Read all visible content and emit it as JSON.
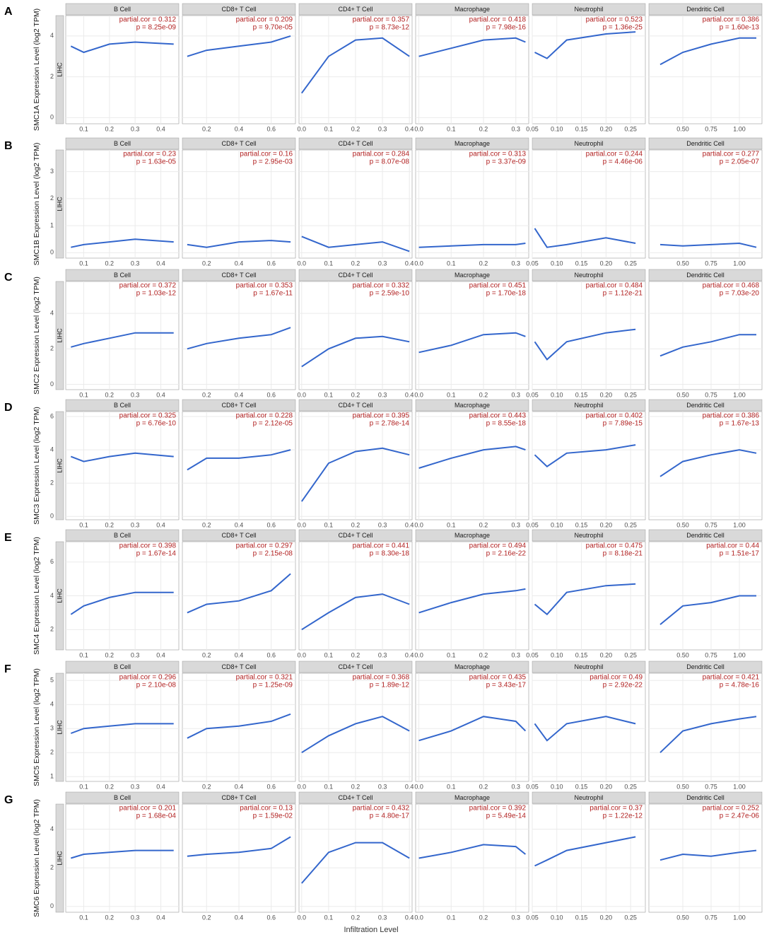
{
  "xlabel": "Infiltration Level",
  "columns": [
    {
      "title": "B Cell",
      "xlim": [
        0.03,
        0.47
      ],
      "xticks": [
        0.1,
        0.2,
        0.3,
        0.4
      ],
      "curve_x": [
        0.05,
        0.1,
        0.2,
        0.3,
        0.45
      ]
    },
    {
      "title": "CD8+ T Cell",
      "xlim": [
        0.05,
        0.75
      ],
      "xticks": [
        0.2,
        0.4,
        0.6
      ],
      "curve_x": [
        0.08,
        0.2,
        0.4,
        0.6,
        0.72
      ]
    },
    {
      "title": "CD4+ T Cell",
      "xlim": [
        -0.01,
        0.41
      ],
      "xticks": [
        {
          "value": 0,
          "label": "0.0"
        },
        0.1,
        0.2,
        0.3,
        0.4
      ],
      "curve_x": [
        0,
        0.1,
        0.2,
        0.3,
        0.4
      ]
    },
    {
      "title": "Macrophage",
      "xlim": [
        -0.01,
        0.34
      ],
      "xticks": [
        {
          "value": 0,
          "label": "0.0"
        },
        0.1,
        0.2,
        0.3
      ],
      "curve_x": [
        0,
        0.1,
        0.2,
        0.3,
        0.33
      ]
    },
    {
      "title": "Neutrophil",
      "xlim": [
        0.05,
        0.28
      ],
      "xticks": [
        0.05,
        {
          "value": 0.1,
          "label": "0.10"
        },
        0.15,
        {
          "value": 0.2,
          "label": "0.20"
        },
        0.25
      ],
      "curve_x": [
        0.055,
        0.08,
        0.12,
        0.2,
        0.26
      ]
    },
    {
      "title": "Dendritic Cell",
      "xlim": [
        0.2,
        1.2
      ],
      "xticks": [
        {
          "value": 0.5,
          "label": "0.50"
        },
        0.75,
        {
          "value": 1,
          "label": "1.00"
        }
      ],
      "curve_x": [
        0.3,
        0.5,
        0.75,
        1,
        1.15
      ]
    }
  ],
  "rows": [
    {
      "label": "A",
      "ylabel": "SMC1A Expression Level (log2 TPM)",
      "strip": "LIHC",
      "ylim": [
        -0.3,
        5
      ],
      "yticks": [
        0,
        2,
        4
      ],
      "panels": [
        {
          "cor": "partial.cor = 0.312",
          "p": "p = 8.25e-09",
          "curve_y": [
            3.5,
            3.2,
            3.6,
            3.7,
            3.6
          ]
        },
        {
          "cor": "partial.cor = 0.209",
          "p": "p = 9.70e-05",
          "curve_y": [
            3.0,
            3.3,
            3.5,
            3.7,
            4.0
          ]
        },
        {
          "cor": "partial.cor = 0.357",
          "p": "p = 8.73e-12",
          "curve_y": [
            1.2,
            3.0,
            3.8,
            3.9,
            3.0
          ]
        },
        {
          "cor": "partial.cor = 0.418",
          "p": "p = 7.98e-16",
          "curve_y": [
            3.0,
            3.4,
            3.8,
            3.9,
            3.7
          ]
        },
        {
          "cor": "partial.cor = 0.523",
          "p": "p = 1.36e-25",
          "curve_y": [
            3.2,
            2.9,
            3.8,
            4.1,
            4.2
          ]
        },
        {
          "cor": "partial.cor = 0.386",
          "p": "p = 1.60e-13",
          "curve_y": [
            2.6,
            3.2,
            3.6,
            3.9,
            3.9
          ]
        }
      ]
    },
    {
      "label": "B",
      "ylabel": "SMC1B Expression Level (log2 TPM)",
      "strip": "LIHC",
      "ylim": [
        -0.2,
        3.8
      ],
      "yticks": [
        0,
        1,
        2,
        3
      ],
      "panels": [
        {
          "cor": "partial.cor = 0.23",
          "p": "p = 1.63e-05",
          "curve_y": [
            0.2,
            0.3,
            0.4,
            0.5,
            0.4
          ]
        },
        {
          "cor": "partial.cor = 0.16",
          "p": "p = 2.95e-03",
          "curve_y": [
            0.3,
            0.2,
            0.4,
            0.45,
            0.4
          ]
        },
        {
          "cor": "partial.cor = 0.284",
          "p": "p = 8.07e-08",
          "curve_y": [
            0.6,
            0.2,
            0.3,
            0.4,
            0.05
          ]
        },
        {
          "cor": "partial.cor = 0.313",
          "p": "p = 3.37e-09",
          "curve_y": [
            0.2,
            0.25,
            0.3,
            0.3,
            0.35
          ]
        },
        {
          "cor": "partial.cor = 0.244",
          "p": "p = 4.46e-06",
          "curve_y": [
            0.9,
            0.2,
            0.3,
            0.55,
            0.35
          ]
        },
        {
          "cor": "partial.cor = 0.277",
          "p": "p = 2.05e-07",
          "curve_y": [
            0.3,
            0.25,
            0.3,
            0.35,
            0.2
          ]
        }
      ]
    },
    {
      "label": "C",
      "ylabel": "SMC2 Expression Level (log2 TPM)",
      "strip": "LIHC",
      "ylim": [
        -0.3,
        5.8
      ],
      "yticks": [
        0,
        2,
        4
      ],
      "panels": [
        {
          "cor": "partial.cor = 0.372",
          "p": "p = 1.03e-12",
          "curve_y": [
            2.1,
            2.3,
            2.6,
            2.9,
            2.9
          ]
        },
        {
          "cor": "partial.cor = 0.353",
          "p": "p = 1.67e-11",
          "curve_y": [
            2.0,
            2.3,
            2.6,
            2.8,
            3.2
          ]
        },
        {
          "cor": "partial.cor = 0.332",
          "p": "p = 2.59e-10",
          "curve_y": [
            1.0,
            2.0,
            2.6,
            2.7,
            2.4
          ]
        },
        {
          "cor": "partial.cor = 0.451",
          "p": "p = 1.70e-18",
          "curve_y": [
            1.8,
            2.2,
            2.8,
            2.9,
            2.7
          ]
        },
        {
          "cor": "partial.cor = 0.484",
          "p": "p = 1.12e-21",
          "curve_y": [
            2.4,
            1.4,
            2.4,
            2.9,
            3.1
          ]
        },
        {
          "cor": "partial.cor = 0.468",
          "p": "p = 7.03e-20",
          "curve_y": [
            1.6,
            2.1,
            2.4,
            2.8,
            2.8
          ]
        }
      ]
    },
    {
      "label": "D",
      "ylabel": "SMC3 Expression Level (log2 TPM)",
      "strip": "LIHC",
      "ylim": [
        -0.2,
        6.3
      ],
      "yticks": [
        0,
        2,
        4,
        6
      ],
      "panels": [
        {
          "cor": "partial.cor = 0.325",
          "p": "p = 6.76e-10",
          "curve_y": [
            3.6,
            3.3,
            3.6,
            3.8,
            3.6
          ]
        },
        {
          "cor": "partial.cor = 0.228",
          "p": "p = 2.12e-05",
          "curve_y": [
            2.8,
            3.5,
            3.5,
            3.7,
            4.0
          ]
        },
        {
          "cor": "partial.cor = 0.395",
          "p": "p = 2.78e-14",
          "curve_y": [
            0.9,
            3.2,
            3.9,
            4.1,
            3.7
          ]
        },
        {
          "cor": "partial.cor = 0.443",
          "p": "p = 8.55e-18",
          "curve_y": [
            2.9,
            3.5,
            4.0,
            4.2,
            4.0
          ]
        },
        {
          "cor": "partial.cor = 0.402",
          "p": "p = 7.89e-15",
          "curve_y": [
            3.7,
            3.0,
            3.8,
            4.0,
            4.3
          ]
        },
        {
          "cor": "partial.cor = 0.386",
          "p": "p = 1.67e-13",
          "curve_y": [
            2.4,
            3.3,
            3.7,
            4.0,
            3.8
          ]
        }
      ]
    },
    {
      "label": "E",
      "ylabel": "SMC4 Expression Level (log2 TPM)",
      "strip": "LIHC",
      "ylim": [
        0.8,
        7.2
      ],
      "yticks": [
        2,
        4,
        6
      ],
      "panels": [
        {
          "cor": "partial.cor = 0.398",
          "p": "p = 1.67e-14",
          "curve_y": [
            2.9,
            3.4,
            3.9,
            4.2,
            4.2
          ]
        },
        {
          "cor": "partial.cor = 0.297",
          "p": "p = 2.15e-08",
          "curve_y": [
            3.0,
            3.5,
            3.7,
            4.3,
            5.3
          ]
        },
        {
          "cor": "partial.cor = 0.441",
          "p": "p = 8.30e-18",
          "curve_y": [
            2.0,
            3.0,
            3.9,
            4.1,
            3.5
          ]
        },
        {
          "cor": "partial.cor = 0.494",
          "p": "p = 2.16e-22",
          "curve_y": [
            3.0,
            3.6,
            4.1,
            4.3,
            4.4
          ]
        },
        {
          "cor": "partial.cor = 0.475",
          "p": "p = 8.18e-21",
          "curve_y": [
            3.5,
            2.9,
            4.2,
            4.6,
            4.7
          ]
        },
        {
          "cor": "partial.cor = 0.44",
          "p": "p = 1.51e-17",
          "curve_y": [
            2.3,
            3.4,
            3.6,
            4.0,
            4.0
          ]
        }
      ]
    },
    {
      "label": "F",
      "ylabel": "SMC5 Expression Level (log2 TPM)",
      "strip": "LIHC",
      "ylim": [
        0.8,
        5.3
      ],
      "yticks": [
        1,
        2,
        3,
        4,
        5
      ],
      "panels": [
        {
          "cor": "partial.cor = 0.296",
          "p": "p = 2.10e-08",
          "curve_y": [
            2.8,
            3.0,
            3.1,
            3.2,
            3.2
          ]
        },
        {
          "cor": "partial.cor = 0.321",
          "p": "p = 1.25e-09",
          "curve_y": [
            2.6,
            3.0,
            3.1,
            3.3,
            3.6
          ]
        },
        {
          "cor": "partial.cor = 0.368",
          "p": "p = 1.89e-12",
          "curve_y": [
            2.0,
            2.7,
            3.2,
            3.5,
            2.9
          ]
        },
        {
          "cor": "partial.cor = 0.435",
          "p": "p = 3.43e-17",
          "curve_y": [
            2.5,
            2.9,
            3.5,
            3.3,
            2.9
          ]
        },
        {
          "cor": "partial.cor = 0.49",
          "p": "p = 2.92e-22",
          "curve_y": [
            3.2,
            2.5,
            3.2,
            3.5,
            3.2
          ]
        },
        {
          "cor": "partial.cor = 0.421",
          "p": "p = 4.78e-16",
          "curve_y": [
            2.0,
            2.9,
            3.2,
            3.4,
            3.5
          ]
        }
      ]
    },
    {
      "label": "G",
      "ylabel": "SMC6 Expression Level (log2 TPM)",
      "strip": "LIHC",
      "ylim": [
        -0.3,
        5.3
      ],
      "yticks": [
        0,
        2,
        4
      ],
      "panels": [
        {
          "cor": "partial.cor = 0.201",
          "p": "p = 1.68e-04",
          "curve_y": [
            2.5,
            2.7,
            2.8,
            2.9,
            2.9
          ]
        },
        {
          "cor": "partial.cor = 0.13",
          "p": "p = 1.59e-02",
          "curve_y": [
            2.6,
            2.7,
            2.8,
            3.0,
            3.6
          ]
        },
        {
          "cor": "partial.cor = 0.432",
          "p": "p = 4.80e-17",
          "curve_y": [
            1.2,
            2.8,
            3.3,
            3.3,
            2.5
          ]
        },
        {
          "cor": "partial.cor = 0.392",
          "p": "p = 5.49e-14",
          "curve_y": [
            2.5,
            2.8,
            3.2,
            3.1,
            2.7
          ]
        },
        {
          "cor": "partial.cor = 0.37",
          "p": "p = 1.22e-12",
          "curve_y": [
            2.1,
            2.4,
            2.9,
            3.3,
            3.6
          ]
        },
        {
          "cor": "partial.cor = 0.252",
          "p": "p = 2.47e-06",
          "curve_y": [
            2.4,
            2.7,
            2.6,
            2.8,
            2.9
          ]
        }
      ]
    }
  ]
}
